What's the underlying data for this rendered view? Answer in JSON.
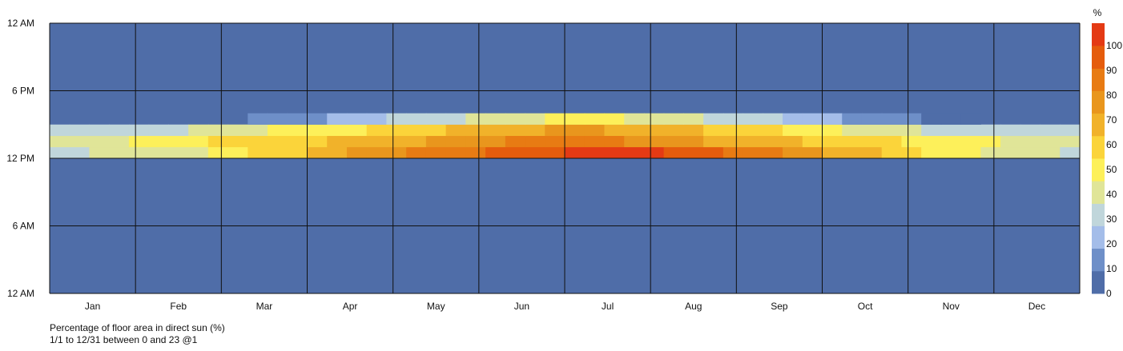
{
  "chart_data": {
    "type": "heatmap",
    "title": "",
    "xlabel": "",
    "ylabel": "",
    "x_tick_labels": [
      "Jan",
      "Feb",
      "Mar",
      "Apr",
      "May",
      "Jun",
      "Jul",
      "Aug",
      "Sep",
      "Oct",
      "Nov",
      "Dec"
    ],
    "y_tick_labels": [
      "12 AM",
      "6 PM",
      "12 PM",
      "6 AM",
      "12 AM"
    ],
    "y_range_hours": [
      0,
      24
    ],
    "x_range_weeks": [
      1,
      52
    ],
    "colorbar": {
      "unit_label": "%",
      "ticks": [
        "0",
        "10",
        "20",
        "30",
        "40",
        "50",
        "60",
        "70",
        "80",
        "90",
        "100"
      ],
      "range": [
        0,
        109
      ],
      "bins": [
        {
          "min": 0,
          "max": 9.1,
          "color": "#4f6da8"
        },
        {
          "min": 9.1,
          "max": 18.2,
          "color": "#6e8fc8"
        },
        {
          "min": 18.2,
          "max": 27.3,
          "color": "#a4bde9"
        },
        {
          "min": 27.3,
          "max": 36.3,
          "color": "#c0d6db"
        },
        {
          "min": 36.3,
          "max": 45.4,
          "color": "#e0e598"
        },
        {
          "min": 45.4,
          "max": 54.5,
          "color": "#fdf05a"
        },
        {
          "min": 54.5,
          "max": 63.6,
          "color": "#fbd43a"
        },
        {
          "min": 63.6,
          "max": 72.7,
          "color": "#f1b22a"
        },
        {
          "min": 72.7,
          "max": 81.8,
          "color": "#e9961d"
        },
        {
          "min": 81.8,
          "max": 90.8,
          "color": "#e87b13"
        },
        {
          "min": 90.8,
          "max": 100,
          "color": "#e55c0c"
        },
        {
          "min": 100,
          "max": 109,
          "color": "#e43a14"
        }
      ]
    },
    "hour_rows": [
      {
        "hour": 9,
        "values": [
          0,
          0,
          0,
          0,
          0,
          0,
          0,
          0,
          0,
          0,
          0,
          0,
          0,
          0,
          0,
          0,
          0,
          0,
          0,
          0,
          0,
          0,
          0,
          0,
          0,
          0,
          0,
          0,
          0,
          0,
          0,
          0,
          0,
          0,
          0,
          0,
          0,
          0,
          0,
          0,
          0,
          0,
          0,
          0,
          0,
          0,
          0,
          0,
          0,
          0,
          0,
          0
        ]
      },
      {
        "hour": 10,
        "values": [
          0,
          0,
          0,
          0,
          0,
          0,
          0,
          0,
          0,
          0,
          0,
          0,
          0,
          0,
          0,
          0,
          0,
          0,
          0,
          0,
          0,
          0,
          0,
          0,
          0,
          0,
          0,
          0,
          0,
          0,
          0,
          0,
          0,
          0,
          0,
          0,
          0,
          0,
          0,
          0,
          0,
          0,
          0,
          0,
          0,
          0,
          0,
          0,
          0,
          0,
          0,
          0
        ]
      },
      {
        "hour": 11,
        "values": [
          0,
          0,
          0,
          0,
          0,
          0,
          0,
          0,
          0,
          0,
          0,
          0,
          0,
          0,
          0,
          0,
          0,
          0,
          0,
          0,
          0,
          0,
          0,
          0,
          0,
          0,
          0,
          0,
          0,
          0,
          0,
          0,
          0,
          0,
          0,
          0,
          0,
          0,
          0,
          0,
          0,
          0,
          0,
          0,
          0,
          0,
          0,
          0,
          0,
          0,
          0,
          0
        ]
      },
      {
        "hour": 12,
        "values": [
          35,
          36,
          37,
          40,
          42,
          43,
          44,
          45,
          48,
          50,
          55,
          58,
          62,
          68,
          72,
          75,
          77,
          80,
          82,
          85,
          87,
          90,
          92,
          95,
          97,
          99,
          101,
          102,
          102,
          101,
          100,
          98,
          96,
          92,
          89,
          86,
          82,
          78,
          75,
          72,
          68,
          64,
          60,
          55,
          52,
          50,
          47,
          44,
          42,
          40,
          37,
          35
        ]
      },
      {
        "hour": 13,
        "values": [
          40,
          42,
          44,
          45,
          48,
          50,
          52,
          54,
          55,
          56,
          57,
          58,
          60,
          62,
          64,
          66,
          68,
          70,
          72,
          74,
          76,
          78,
          80,
          82,
          83,
          84,
          84,
          83,
          82,
          80,
          78,
          76,
          74,
          72,
          70,
          68,
          66,
          64,
          62,
          60,
          58,
          56,
          55,
          54,
          52,
          50,
          48,
          46,
          44,
          42,
          40,
          38
        ]
      },
      {
        "hour": 14,
        "values": [
          30,
          30,
          31,
          32,
          33,
          34,
          36,
          38,
          40,
          42,
          44,
          46,
          48,
          50,
          52,
          54,
          56,
          58,
          60,
          62,
          64,
          66,
          68,
          70,
          72,
          74,
          74,
          73,
          72,
          70,
          68,
          66,
          64,
          62,
          60,
          58,
          55,
          52,
          50,
          47,
          45,
          42,
          40,
          38,
          36,
          34,
          32,
          31,
          30,
          30,
          30,
          30
        ]
      },
      {
        "hour": 15,
        "values": [
          0,
          0,
          0,
          0,
          0,
          0,
          0,
          0,
          0,
          0,
          10,
          12,
          14,
          16,
          20,
          22,
          25,
          28,
          30,
          32,
          35,
          38,
          40,
          42,
          45,
          47,
          48,
          47,
          46,
          44,
          42,
          40,
          38,
          35,
          32,
          30,
          28,
          25,
          22,
          20,
          18,
          15,
          12,
          10,
          8,
          6,
          4,
          0,
          0,
          0,
          0,
          0
        ]
      },
      {
        "hour": 16,
        "values": [
          0,
          0,
          0,
          0,
          0,
          0,
          0,
          0,
          0,
          0,
          0,
          0,
          0,
          0,
          0,
          0,
          0,
          0,
          0,
          0,
          0,
          0,
          0,
          0,
          0,
          0,
          0,
          0,
          0,
          0,
          0,
          0,
          0,
          0,
          0,
          0,
          0,
          0,
          0,
          0,
          0,
          0,
          0,
          0,
          0,
          0,
          0,
          0,
          0,
          0,
          0,
          0
        ]
      }
    ],
    "hour_rows_note_omitted": ""
  },
  "caption": {
    "title": "Percentage of floor area in direct sun (%)",
    "range": "1/1 to 12/31 between 0 and 23 @1"
  }
}
